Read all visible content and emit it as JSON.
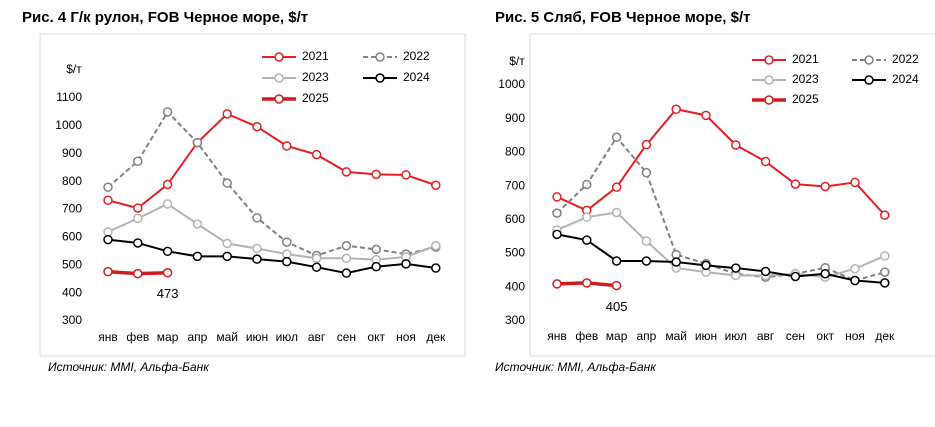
{
  "chart_data": [
    {
      "type": "line",
      "title": "Рис. 4 Г/к рулон, FOB Черное море, $/т",
      "y_label": "$/т",
      "source": "Источник: MMI, Альфа-Банк",
      "categories": [
        "янв",
        "фев",
        "мар",
        "апр",
        "май",
        "июн",
        "июл",
        "авг",
        "сен",
        "окт",
        "ноя",
        "дек"
      ],
      "ylim": [
        300,
        1100
      ],
      "yticks": [
        300,
        400,
        500,
        600,
        700,
        800,
        900,
        1000,
        1100
      ],
      "series": [
        {
          "name": "2021",
          "color": "#e31e24",
          "values": [
            733,
            705,
            790,
            940,
            1043,
            997,
            928,
            897,
            835,
            826,
            824,
            787
          ]
        },
        {
          "name": "2022",
          "color": "#808080",
          "dashed": true,
          "values": [
            780,
            873,
            1050,
            940,
            795,
            670,
            583,
            535,
            570,
            557,
            540,
            565
          ]
        },
        {
          "name": "2023",
          "color": "#b3b3b3",
          "values": [
            620,
            668,
            720,
            648,
            578,
            560,
            540,
            525,
            525,
            520,
            530,
            570
          ]
        },
        {
          "name": "2024",
          "color": "#000000",
          "values": [
            592,
            580,
            550,
            532,
            532,
            522,
            513,
            493,
            472,
            495,
            505,
            490
          ]
        },
        {
          "name": "2025",
          "color": "#d01c1f",
          "thick": true,
          "labeled_point": 2,
          "values": [
            477,
            470,
            473,
            null,
            null,
            null,
            null,
            null,
            null,
            null,
            null,
            null
          ]
        }
      ]
    },
    {
      "type": "line",
      "title": "Рис. 5 Сляб, FOB Черное море, $/т",
      "y_label": "$/т",
      "source": "Источник: MMI, Альфа-Банк",
      "categories": [
        "янв",
        "фев",
        "мар",
        "апр",
        "май",
        "июн",
        "июл",
        "авг",
        "сен",
        "окт",
        "ноя",
        "дек"
      ],
      "ylim": [
        300,
        1000
      ],
      "yticks": [
        300,
        400,
        500,
        600,
        700,
        800,
        900,
        1000
      ],
      "series": [
        {
          "name": "2021",
          "color": "#e31e24",
          "values": [
            668,
            628,
            697,
            823,
            928,
            910,
            822,
            773,
            706,
            699,
            711,
            614
          ]
        },
        {
          "name": "2022",
          "color": "#808080",
          "dashed": true,
          "values": [
            620,
            705,
            845,
            740,
            497,
            470,
            440,
            430,
            440,
            458,
            420,
            445
          ]
        },
        {
          "name": "2023",
          "color": "#b3b3b3",
          "values": [
            570,
            608,
            622,
            537,
            457,
            445,
            435,
            435,
            440,
            430,
            455,
            493
          ]
        },
        {
          "name": "2024",
          "color": "#000000",
          "values": [
            557,
            540,
            478,
            478,
            475,
            465,
            457,
            447,
            432,
            440,
            420,
            413
          ]
        },
        {
          "name": "2025",
          "color": "#d01c1f",
          "thick": true,
          "labeled_point": 2,
          "values": [
            410,
            413,
            405,
            null,
            null,
            null,
            null,
            null,
            null,
            null,
            null,
            null
          ]
        }
      ]
    }
  ]
}
